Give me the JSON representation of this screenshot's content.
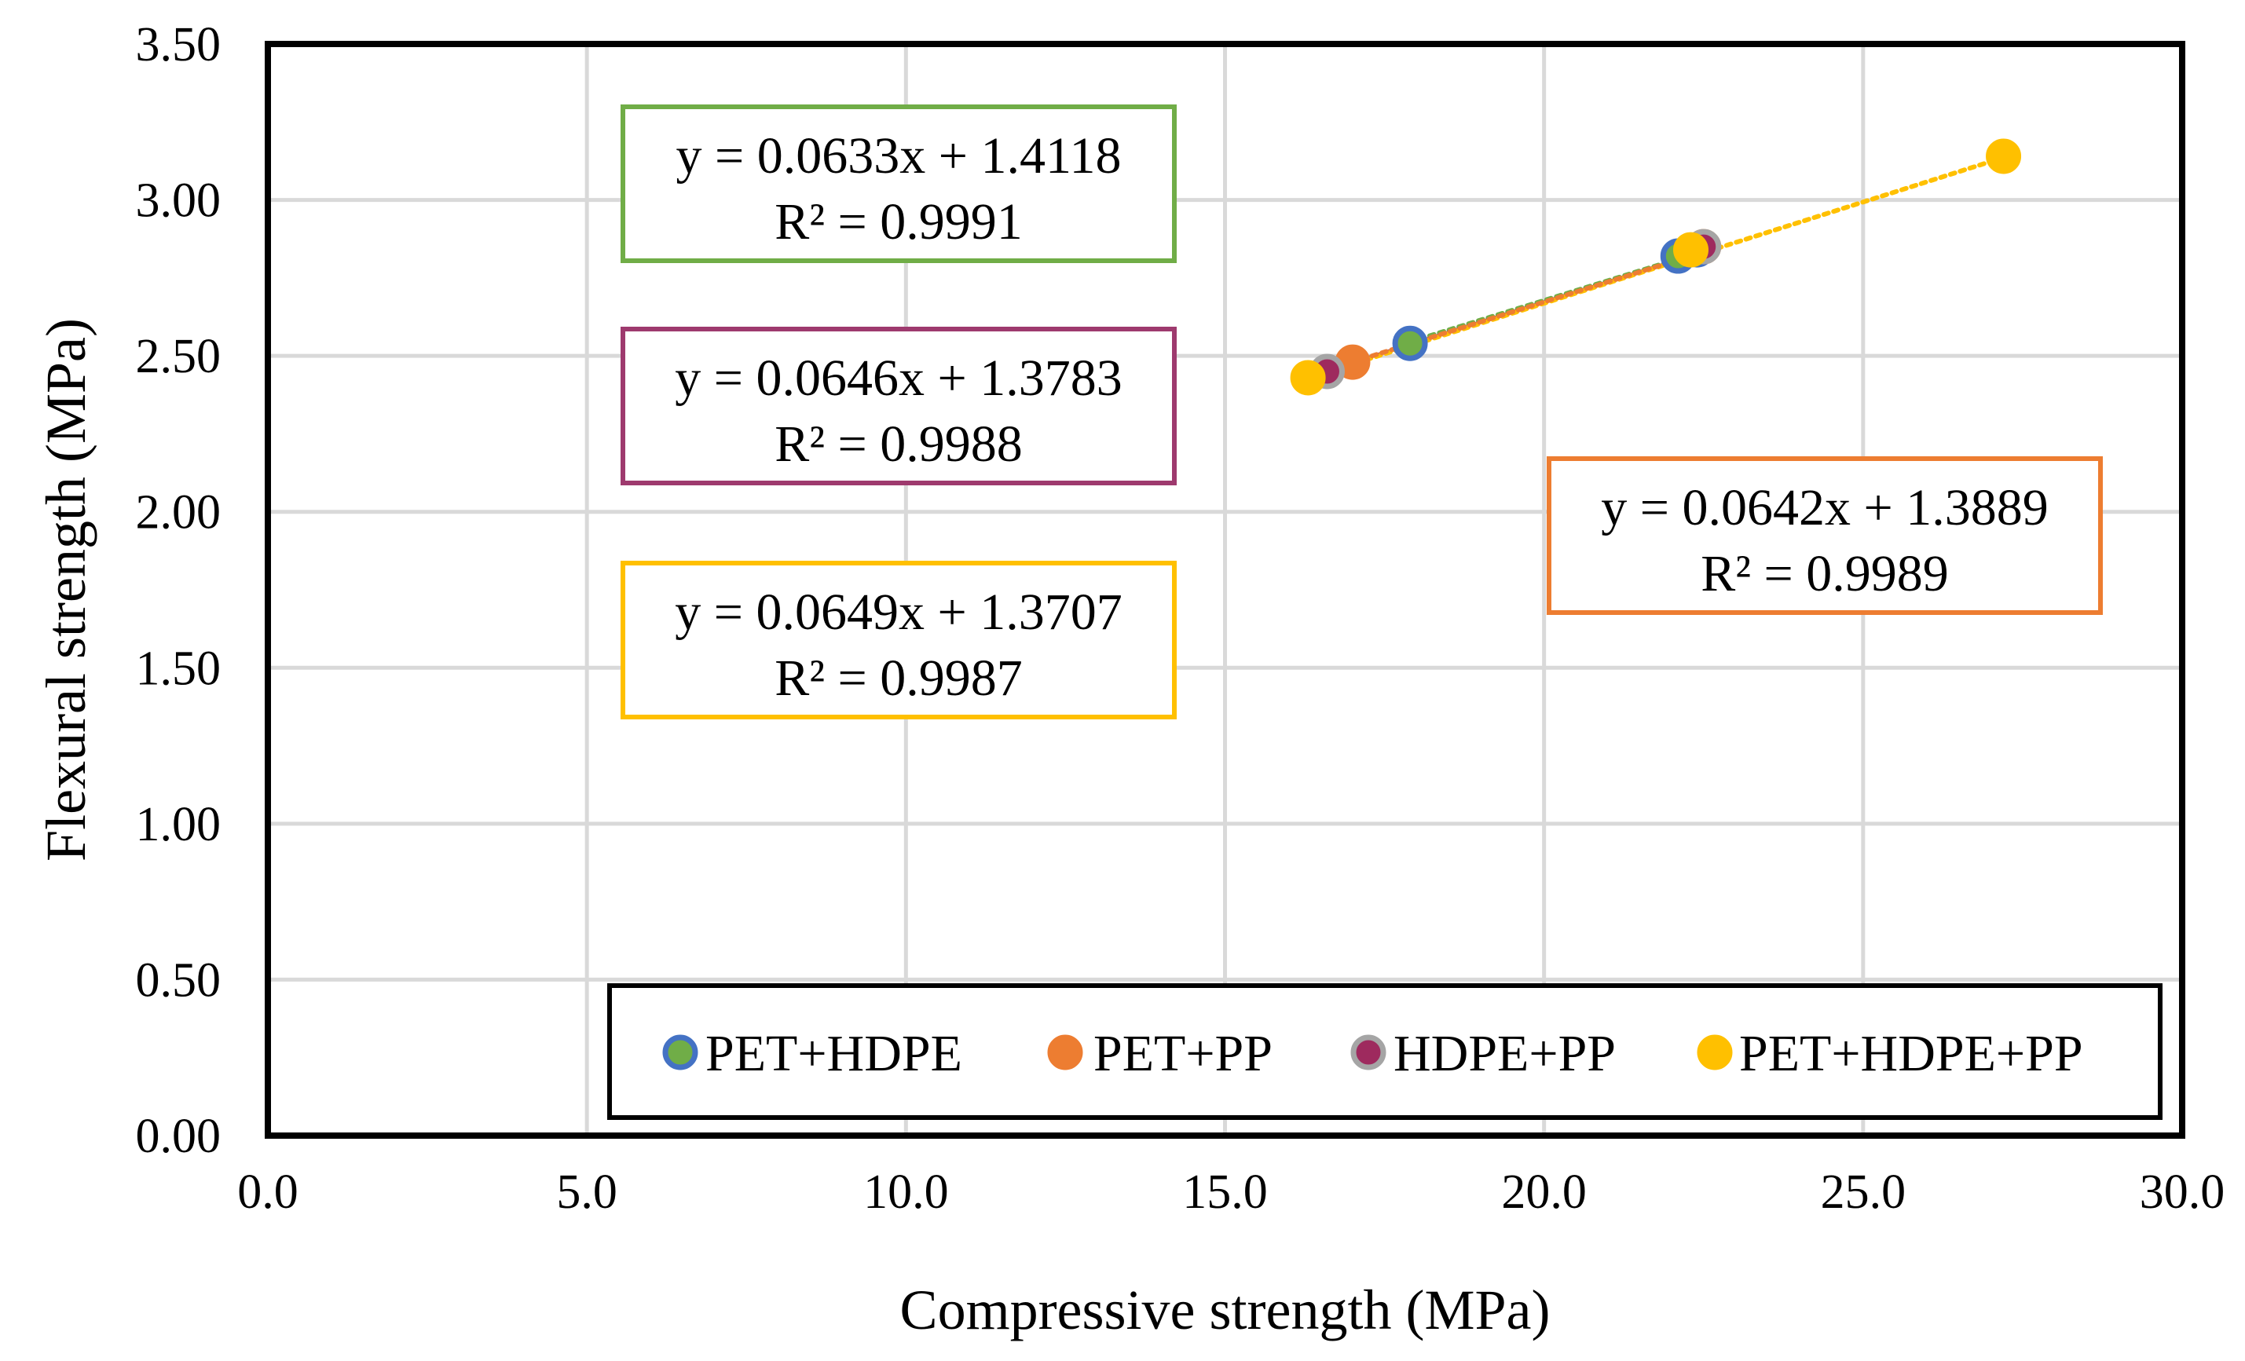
{
  "chart_data": {
    "type": "scatter",
    "xlabel": "Compressive strength (MPa)",
    "ylabel": "Flexural strength (MPa)",
    "xlim": [
      0,
      30
    ],
    "ylim": [
      0,
      3.5
    ],
    "x_ticks": [
      "0.0",
      "5.0",
      "10.0",
      "15.0",
      "20.0",
      "25.0",
      "30.0"
    ],
    "y_ticks": [
      "0.00",
      "0.50",
      "1.00",
      "1.50",
      "2.00",
      "2.50",
      "3.00",
      "3.50"
    ],
    "grid": true,
    "legend_position": "bottom-right inside",
    "series": [
      {
        "name": "PET+HDPE",
        "fill": "#70ad47",
        "stroke": "#4472c4",
        "points": [
          [
            17.9,
            2.54
          ],
          [
            22.1,
            2.82
          ],
          [
            22.4,
            2.84
          ]
        ],
        "trendline": {
          "slope": 0.0633,
          "intercept": 1.4118,
          "line1": "y = 0.0633x + 1.4118",
          "line2": "R² = 0.9991",
          "box_color": "#70ad47"
        }
      },
      {
        "name": "PET+PP",
        "fill": "#ed7d31",
        "stroke": "#ed7d31",
        "points": [
          [
            17.0,
            2.48
          ],
          [
            22.5,
            2.85
          ]
        ],
        "trendline": {
          "slope": 0.0642,
          "intercept": 1.3889,
          "line1": "y = 0.0642x + 1.3889",
          "line2": "R² = 0.9989",
          "box_color": "#ed7d31"
        }
      },
      {
        "name": "HDPE+PP",
        "fill": "#9e2a5e",
        "stroke": "#a5a5a5",
        "points": [
          [
            16.6,
            2.45
          ],
          [
            22.5,
            2.85
          ]
        ],
        "trendline": {
          "slope": 0.0646,
          "intercept": 1.3783,
          "line1": "y = 0.0646x + 1.3783",
          "line2": "R² = 0.9988",
          "box_color": "#9e3a6e"
        }
      },
      {
        "name": "PET+HDPE+PP",
        "fill": "#ffc000",
        "stroke": "#ffc000",
        "points": [
          [
            16.3,
            2.43
          ],
          [
            22.3,
            2.84
          ],
          [
            27.2,
            3.14
          ]
        ],
        "trendline": {
          "slope": 0.0649,
          "intercept": 1.3707,
          "line1": "y = 0.0649x + 1.3707",
          "line2": "R² = 0.9987",
          "box_color": "#ffc000"
        }
      }
    ]
  }
}
